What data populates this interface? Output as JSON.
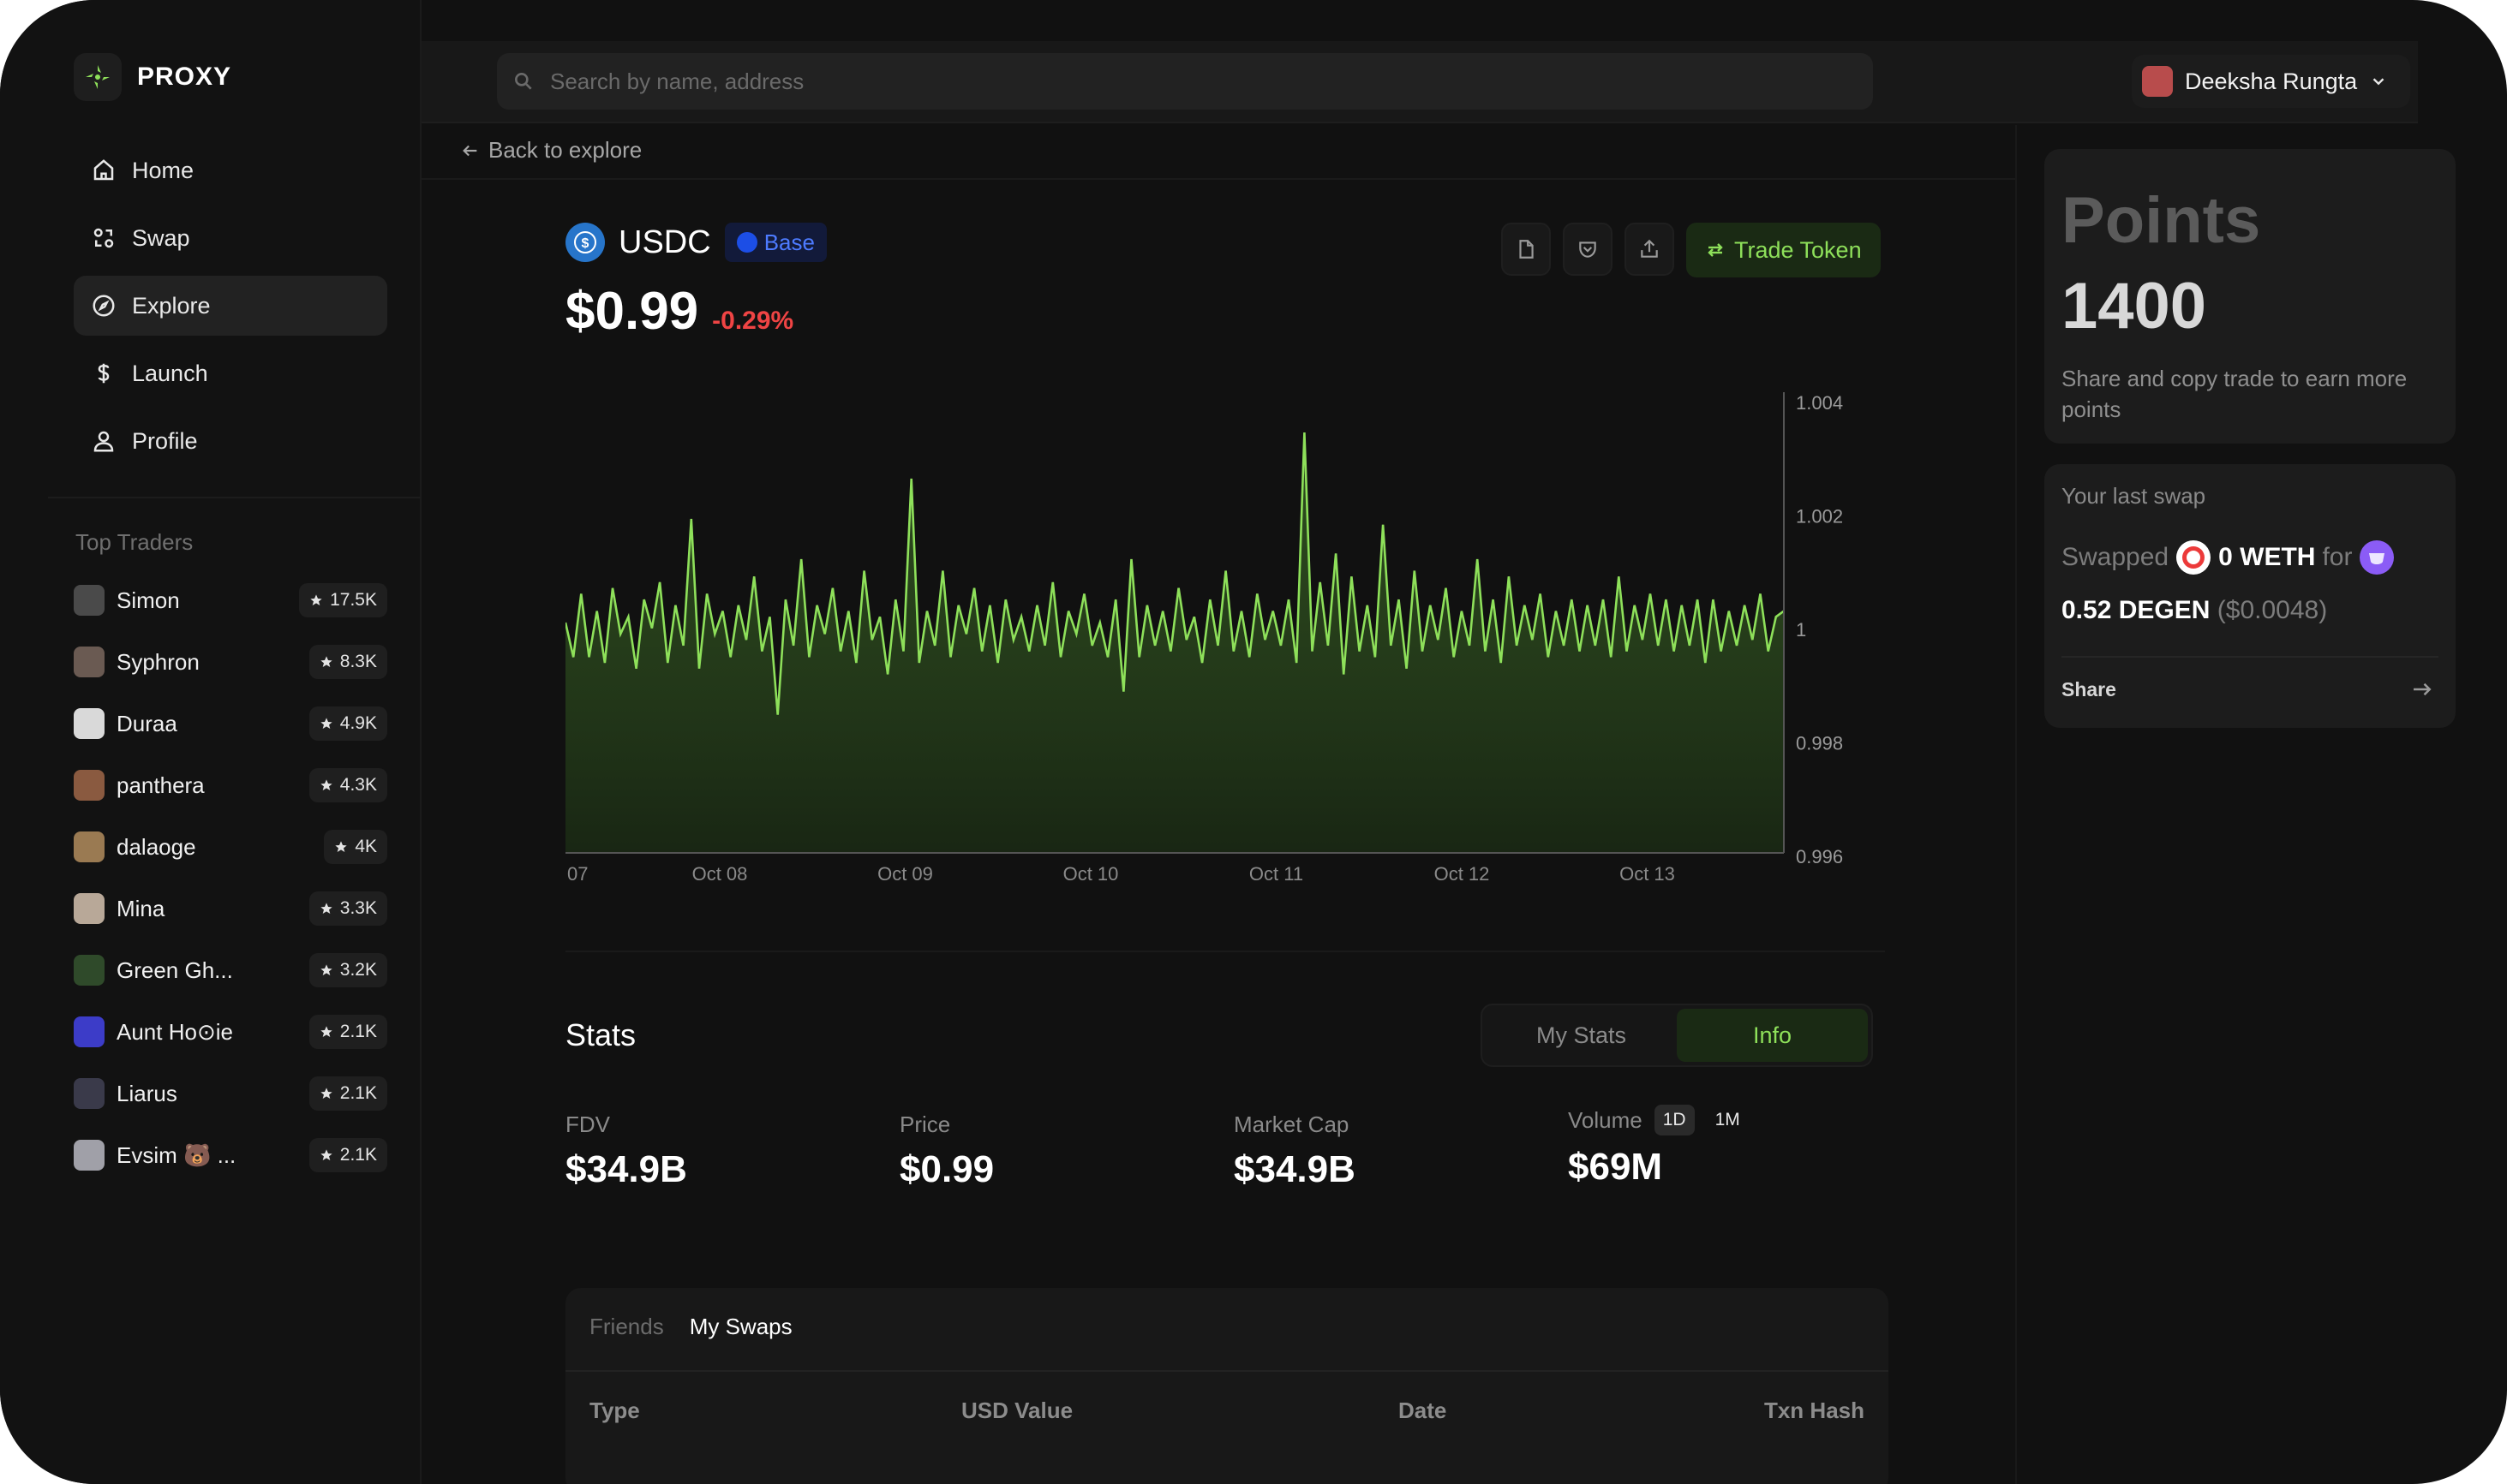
{
  "app": {
    "name": "PROXY"
  },
  "nav": [
    {
      "label": "Home",
      "icon": "home-icon",
      "active": false
    },
    {
      "label": "Swap",
      "icon": "swap-icon",
      "active": false
    },
    {
      "label": "Explore",
      "icon": "compass-icon",
      "active": true
    },
    {
      "label": "Launch",
      "icon": "dollar-icon",
      "active": false
    },
    {
      "label": "Profile",
      "icon": "user-icon",
      "active": false
    }
  ],
  "top_traders": {
    "title": "Top Traders",
    "items": [
      {
        "name": "Simon",
        "points": "17.5K",
        "avatar_color": "#4a4a4a"
      },
      {
        "name": "Syphron",
        "points": "8.3K",
        "avatar_color": "#6a5a52"
      },
      {
        "name": "Duraa",
        "points": "4.9K",
        "avatar_color": "#d9d9d9"
      },
      {
        "name": "panthera",
        "points": "4.3K",
        "avatar_color": "#8a5a40"
      },
      {
        "name": "dalaoge",
        "points": "4K",
        "avatar_color": "#9a7a52"
      },
      {
        "name": "Mina",
        "points": "3.3K",
        "avatar_color": "#b8a898"
      },
      {
        "name": "Green Gh...",
        "points": "3.2K",
        "avatar_color": "#2f4a2a"
      },
      {
        "name": "Aunt Ho⊙ie",
        "points": "2.1K",
        "avatar_color": "#3c3cc8"
      },
      {
        "name": "Liarus",
        "points": "2.1K",
        "avatar_color": "#3a3a4a"
      },
      {
        "name": "Evsim 🐻 ...",
        "points": "2.1K",
        "avatar_color": "#a0a0a8"
      }
    ]
  },
  "search": {
    "placeholder": "Search by name, address"
  },
  "user": {
    "name": "Deeksha Rungta"
  },
  "back_label": "Back to explore",
  "token": {
    "symbol": "USDC",
    "chain": "Base",
    "price": "$0.99",
    "change": "-0.29%",
    "trade_label": "Trade Token"
  },
  "colors": {
    "accent": "#8ee05a",
    "negative": "#ef4444",
    "chain": "#4d7bff"
  },
  "chart_data": {
    "type": "area",
    "x_tick_labels": [
      "07",
      "Oct 08",
      "Oct 09",
      "Oct 10",
      "Oct 11",
      "Oct 12",
      "Oct 13"
    ],
    "y_tick_labels": [
      "1.004",
      "1.002",
      "1",
      "0.998",
      "0.996"
    ],
    "ylim": [
      0.996,
      1.004
    ],
    "series": [
      {
        "values": [
          1.0,
          0.9994,
          1.0005,
          0.9994,
          1.0002,
          0.9993,
          1.0006,
          0.9998,
          1.0001,
          0.9992,
          1.0004,
          0.9999,
          1.0007,
          0.9993,
          1.0003,
          0.9996,
          1.0018,
          0.9992,
          1.0005,
          0.9998,
          1.0002,
          0.9994,
          1.0003,
          0.9997,
          1.0008,
          0.9995,
          1.0001,
          0.9984,
          1.0004,
          0.9996,
          1.0011,
          0.9994,
          1.0003,
          0.9998,
          1.0006,
          0.9995,
          1.0002,
          0.9993,
          1.0009,
          0.9997,
          1.0001,
          0.9991,
          1.0004,
          0.9995,
          1.0025,
          0.9993,
          1.0002,
          0.9996,
          1.0009,
          0.9994,
          1.0003,
          0.9998,
          1.0006,
          0.9995,
          1.0003,
          0.9993,
          1.0004,
          0.9997,
          1.0001,
          0.9995,
          1.0003,
          0.9996,
          1.0007,
          0.9994,
          1.0002,
          0.9998,
          1.0005,
          0.9996,
          1.0,
          0.9994,
          1.0004,
          0.9988,
          1.0011,
          0.9994,
          1.0003,
          0.9996,
          1.0002,
          0.9995,
          1.0006,
          0.9997,
          1.0001,
          0.9993,
          1.0004,
          0.9996,
          1.0009,
          0.9995,
          1.0002,
          0.9994,
          1.0005,
          0.9997,
          1.0002,
          0.9996,
          1.0004,
          0.9993,
          1.0033,
          0.9995,
          1.0007,
          0.9996,
          1.0012,
          0.9991,
          1.0008,
          0.9995,
          1.0003,
          0.9994,
          1.0017,
          0.9996,
          1.0004,
          0.9992,
          1.0009,
          0.9995,
          1.0003,
          0.9997,
          1.0006,
          0.9994,
          1.0002,
          0.9996,
          1.0011,
          0.9995,
          1.0004,
          0.9993,
          1.0008,
          0.9996,
          1.0003,
          0.9997,
          1.0005,
          0.9994,
          1.0002,
          0.9996,
          1.0004,
          0.9995,
          1.0003,
          0.9996,
          1.0004,
          0.9994,
          1.0008,
          0.9995,
          1.0003,
          0.9997,
          1.0005,
          0.9996,
          1.0004,
          0.9995,
          1.0003,
          0.9996,
          1.0004,
          0.9993,
          1.0004,
          0.9995,
          1.0002,
          0.9996,
          1.0003,
          0.9997,
          1.0005,
          0.9995,
          1.0001,
          1.0002
        ]
      }
    ],
    "grid": false
  },
  "stats": {
    "title": "Stats",
    "tabs": [
      "My Stats",
      "Info"
    ],
    "active_tab": "Info",
    "items": [
      {
        "label": "FDV",
        "value": "$34.9B"
      },
      {
        "label": "Price",
        "value": "$0.99"
      },
      {
        "label": "Market Cap",
        "value": "$34.9B"
      },
      {
        "label": "Volume",
        "value": "$69M"
      }
    ],
    "volume_timeframes": [
      "1D",
      "1M"
    ]
  },
  "swaps_table": {
    "tabs": [
      "Friends",
      "My Swaps"
    ],
    "active_tab": "My Swaps",
    "columns": [
      "Type",
      "USD Value",
      "Date",
      "Txn Hash"
    ]
  },
  "points": {
    "title": "Points",
    "value": "1400",
    "description": "Share and copy trade to earn more points"
  },
  "last_swap": {
    "title": "Your last swap",
    "swapped": "Swapped",
    "from_amount": "0 WETH",
    "for": "for",
    "to_amount": "0.52 DEGEN",
    "usd": "($0.0048)",
    "share": "Share"
  }
}
